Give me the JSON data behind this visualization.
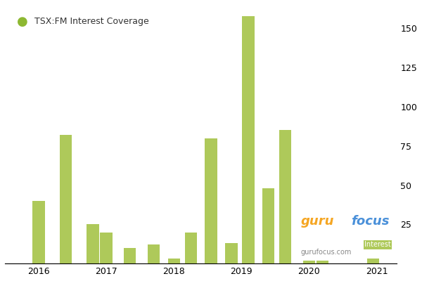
{
  "title": "TSX:FM Interest Coverage",
  "bar_color": "#aec95a",
  "legend_dot_color": "#8db832",
  "background_color": "#ffffff",
  "plot_bg_color": "#ffffff",
  "grid_color": "#dddddd",
  "x_ticks": [
    2016,
    2017,
    2018,
    2019,
    2020,
    2021
  ],
  "xlim": [
    2015.5,
    2021.3
  ],
  "ylim": [
    0,
    165
  ],
  "y_ticks_right": [
    25,
    50,
    75,
    100,
    125,
    150
  ],
  "bars": [
    {
      "x": 2016.0,
      "height": 40
    },
    {
      "x": 2016.4,
      "height": 82
    },
    {
      "x": 2016.8,
      "height": 25
    },
    {
      "x": 2017.0,
      "height": 20
    },
    {
      "x": 2017.35,
      "height": 10
    },
    {
      "x": 2017.7,
      "height": 12
    },
    {
      "x": 2018.0,
      "height": 3
    },
    {
      "x": 2018.25,
      "height": 20
    },
    {
      "x": 2018.55,
      "height": 80
    },
    {
      "x": 2018.85,
      "height": 13
    },
    {
      "x": 2019.1,
      "height": 158
    },
    {
      "x": 2019.4,
      "height": 48
    },
    {
      "x": 2019.65,
      "height": 85
    },
    {
      "x": 2020.0,
      "height": 2
    },
    {
      "x": 2020.2,
      "height": 2
    },
    {
      "x": 2020.95,
      "height": 3
    }
  ],
  "bar_width": 0.18,
  "footer_text": "gurufocus.com",
  "guru_orange": "#f5a623",
  "guru_blue": "#4a90d9",
  "interest_bg": "#aec95a"
}
